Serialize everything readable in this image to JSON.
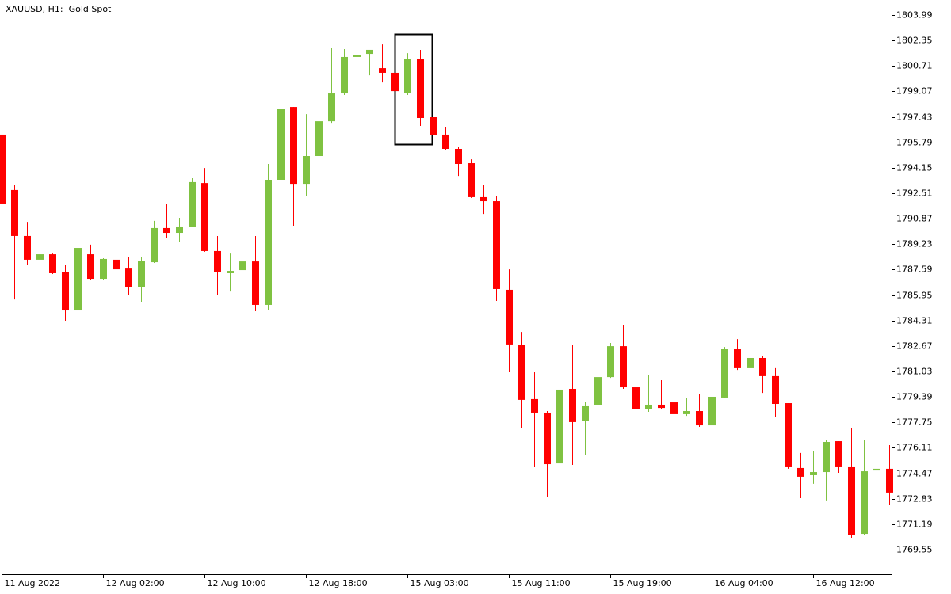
{
  "chart_data": {
    "type": "candlestick",
    "title": "XAUUSD, H1:  Gold Spot",
    "categories": [
      "11 Aug 2022",
      null,
      null,
      null,
      null,
      null,
      null,
      null,
      "12 Aug 02:00",
      null,
      null,
      null,
      null,
      null,
      null,
      null,
      "12 Aug 10:00",
      null,
      null,
      null,
      null,
      null,
      null,
      null,
      "12 Aug 18:00",
      null,
      null,
      null,
      null,
      null,
      null,
      null,
      "15 Aug 03:00",
      null,
      null,
      null,
      null,
      null,
      null,
      null,
      "15 Aug 11:00",
      null,
      null,
      null,
      null,
      null,
      null,
      null,
      "15 Aug 19:00",
      null,
      null,
      null,
      null,
      null,
      null,
      null,
      "16 Aug 04:00",
      null,
      null,
      null,
      null,
      null,
      null,
      null,
      "16 Aug 12:00",
      null,
      null,
      null,
      null,
      null,
      null
    ],
    "open": [
      1796.29,
      1792.72,
      1789.76,
      1788.23,
      1788.58,
      1787.46,
      1784.96,
      1788.58,
      1787.0,
      1788.23,
      1787.66,
      1786.49,
      1788.07,
      1790.27,
      1789.96,
      1790.37,
      1793.17,
      1788.79,
      1787.36,
      1787.56,
      1788.12,
      1785.32,
      1793.38,
      1798.07,
      1793.12,
      1794.91,
      1797.15,
      1798.94,
      1801.29,
      1801.49,
      1800.57,
      1800.27,
      1798.99,
      1801.18,
      1797.41,
      1796.29,
      1795.37,
      1794.45,
      1792.26,
      1792.0,
      1786.29,
      1782.72,
      1779.25,
      1778.38,
      1775.11,
      1779.91,
      1777.82,
      1778.89,
      1780.67,
      1782.66,
      1780.01,
      1778.63,
      1778.89,
      1779.04,
      1778.28,
      1778.48,
      1777.56,
      1779.35,
      1782.46,
      1781.24,
      1781.9,
      1780.73,
      1778.99,
      1774.81,
      1774.35,
      1774.55,
      1776.54,
      1774.86,
      1770.57,
      1774.65,
      1774.76
    ],
    "high": [
      1796.39,
      1793.07,
      1790.67,
      1791.29,
      1788.63,
      1787.87,
      1788.99,
      1789.2,
      1788.33,
      1788.74,
      1788.38,
      1788.38,
      1790.73,
      1791.8,
      1790.93,
      1793.48,
      1794.14,
      1789.76,
      1788.63,
      1788.63,
      1789.76,
      1794.4,
      1798.63,
      1798.07,
      1797.61,
      1798.74,
      1801.9,
      1801.8,
      1802.1,
      1801.75,
      1802.1,
      1800.47,
      1801.54,
      1801.75,
      1797.51,
      1796.8,
      1795.47,
      1794.7,
      1793.07,
      1792.36,
      1787.61,
      1783.58,
      1780.98,
      1778.48,
      1785.67,
      1782.77,
      1779.04,
      1781.39,
      1782.87,
      1784.04,
      1780.11,
      1780.78,
      1780.47,
      1779.96,
      1779.35,
      1779.6,
      1780.57,
      1782.61,
      1783.12,
      1782.0,
      1782.0,
      1781.24,
      1778.99,
      1775.78,
      1775.93,
      1776.64,
      1776.54,
      1777.41,
      1776.64,
      1777.46,
      1776.29
    ],
    "low": [
      1791.8,
      1785.67,
      1787.87,
      1787.61,
      1787.31,
      1784.3,
      1784.91,
      1786.9,
      1786.95,
      1785.98,
      1785.93,
      1785.52,
      1788.02,
      1789.65,
      1789.4,
      1790.32,
      1788.74,
      1785.98,
      1786.18,
      1785.88,
      1784.91,
      1784.96,
      1793.33,
      1790.42,
      1792.31,
      1794.86,
      1797.05,
      1798.84,
      1799.5,
      1800.11,
      1799.65,
      1799.04,
      1798.84,
      1796.85,
      1794.65,
      1795.27,
      1793.63,
      1792.21,
      1791.18,
      1785.57,
      1780.98,
      1777.41,
      1774.86,
      1772.92,
      1772.87,
      1775.01,
      1775.67,
      1777.41,
      1780.62,
      1779.91,
      1777.31,
      1778.43,
      1778.58,
      1778.23,
      1778.17,
      1777.46,
      1776.8,
      1779.3,
      1781.13,
      1781.08,
      1779.65,
      1778.07,
      1774.76,
      1772.87,
      1773.79,
      1772.72,
      1774.5,
      1770.32,
      1770.52,
      1772.97,
      1772.41
    ],
    "close": [
      1791.85,
      1789.76,
      1788.23,
      1788.58,
      1787.36,
      1784.96,
      1788.99,
      1787.0,
      1788.28,
      1787.61,
      1786.49,
      1788.17,
      1790.27,
      1789.96,
      1790.37,
      1793.23,
      1788.79,
      1787.41,
      1787.51,
      1788.12,
      1785.32,
      1793.38,
      1797.97,
      1793.12,
      1794.91,
      1797.15,
      1798.94,
      1801.29,
      1801.39,
      1801.75,
      1800.27,
      1799.09,
      1801.18,
      1797.36,
      1796.24,
      1795.37,
      1794.4,
      1792.26,
      1792.0,
      1786.34,
      1782.77,
      1779.2,
      1778.38,
      1775.06,
      1779.86,
      1777.77,
      1778.84,
      1780.67,
      1782.66,
      1780.01,
      1778.63,
      1778.89,
      1778.68,
      1778.28,
      1778.48,
      1777.56,
      1779.4,
      1782.46,
      1781.24,
      1781.9,
      1780.73,
      1778.94,
      1774.86,
      1774.25,
      1774.55,
      1776.49,
      1774.86,
      1770.52,
      1774.6,
      1774.76,
      1773.23
    ],
    "up_color": "#7fc241",
    "down_color": "#ff0000",
    "ylim": [
      1767.97,
      1804.86
    ],
    "yticks": [
      1803.99,
      1802.35,
      1800.71,
      1799.07,
      1797.43,
      1795.79,
      1794.15,
      1792.51,
      1790.87,
      1789.23,
      1787.59,
      1785.95,
      1784.31,
      1782.67,
      1781.03,
      1779.39,
      1777.75,
      1776.11,
      1774.47,
      1772.83,
      1771.19,
      1769.55
    ],
    "grid": false
  }
}
